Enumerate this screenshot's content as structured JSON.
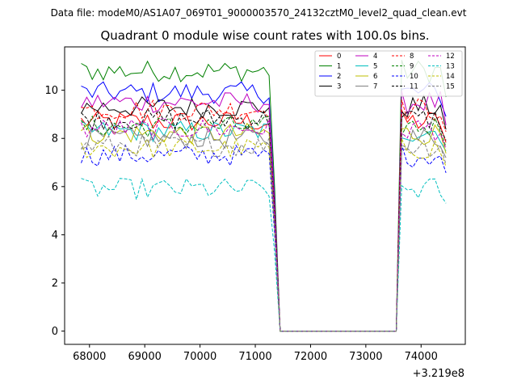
{
  "figure": {
    "suptitle": "Data file: modeM0/AS1A07_069T01_9000003570_24132cztM0_level2_quad_clean.evt",
    "title": "Quadrant 0 module wise count rates with 100.0s bins.",
    "x_offset_label": "+3.219e8"
  },
  "chart_data": {
    "type": "line",
    "title": "Quadrant 0 module wise count rates with 100.0s bins.",
    "xlabel": "",
    "ylabel": "",
    "x_offset": "+3.219e8",
    "xlim": [
      67550,
      74800
    ],
    "ylim": [
      -0.55,
      11.8
    ],
    "xticks": [
      68000,
      69000,
      70000,
      71000,
      72000,
      73000,
      74000
    ],
    "yticks": [
      0,
      2,
      4,
      6,
      8,
      10
    ],
    "grid": false,
    "legend_location": "top-right",
    "legend_columns": 4,
    "segments": {
      "seg1_x_start": 67850,
      "seg1_x_end": 71350,
      "gap_zero_x": [
        71450,
        72450,
        73550
      ],
      "seg2_x_start": 73650,
      "seg2_x_end": 74450,
      "bin": 100
    },
    "series": [
      {
        "name": "0",
        "color": "#ff0000",
        "dash": "solid",
        "mean": 8.7
      },
      {
        "name": "1",
        "color": "#008000",
        "dash": "solid",
        "mean": 10.8
      },
      {
        "name": "2",
        "color": "#0000ff",
        "dash": "solid",
        "mean": 9.9
      },
      {
        "name": "3",
        "color": "#000000",
        "dash": "solid",
        "mean": 9.3
      },
      {
        "name": "4",
        "color": "#bf00bf",
        "dash": "solid",
        "mean": 9.5
      },
      {
        "name": "5",
        "color": "#00bfbf",
        "dash": "solid",
        "mean": 8.3
      },
      {
        "name": "6",
        "color": "#bfbf00",
        "dash": "solid",
        "mean": 8.2
      },
      {
        "name": "7",
        "color": "#808080",
        "dash": "solid",
        "mean": 8.0
      },
      {
        "name": "8",
        "color": "#ff0000",
        "dash": "dashed",
        "mean": 9.2
      },
      {
        "name": "9",
        "color": "#008000",
        "dash": "dashed",
        "mean": 8.5
      },
      {
        "name": "10",
        "color": "#0000ff",
        "dash": "dashed",
        "mean": 7.3
      },
      {
        "name": "11",
        "color": "#000000",
        "dash": "dashed",
        "mean": 8.8
      },
      {
        "name": "12",
        "color": "#bf00bf",
        "dash": "dashed",
        "mean": 8.4
      },
      {
        "name": "13",
        "color": "#00bfbf",
        "dash": "dashed",
        "mean": 5.9
      },
      {
        "name": "14",
        "color": "#bfbf00",
        "dash": "dashed",
        "mean": 7.6
      },
      {
        "name": "15",
        "color": "#808080",
        "dash": "dashed",
        "mean": 7.7
      }
    ]
  }
}
